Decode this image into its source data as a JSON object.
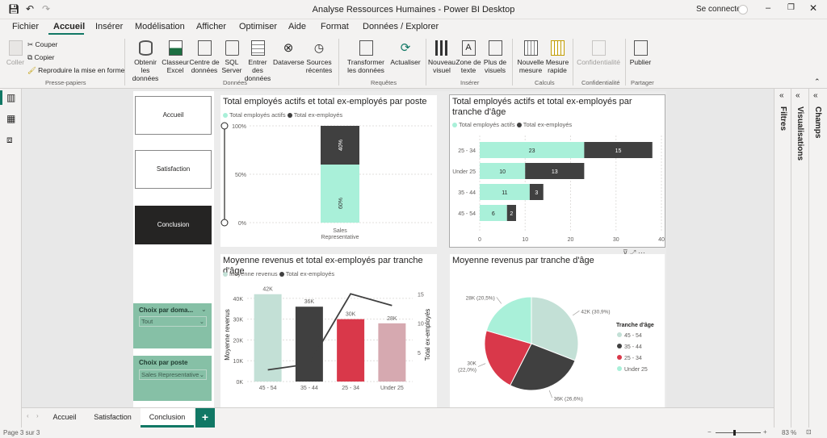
{
  "window": {
    "title": "Analyse Ressources Humaines - Power BI Desktop",
    "signin": "Se connecter"
  },
  "menu": {
    "tabs": [
      "Fichier",
      "Accueil",
      "Insérer",
      "Modélisation",
      "Afficher",
      "Optimiser",
      "Aide",
      "Format",
      "Données / Explorer"
    ],
    "selected": "Accueil"
  },
  "ribbon": {
    "clipboard": {
      "paste": "Coller",
      "cut": "Couper",
      "copy": "Copier",
      "format_painter": "Reproduire la mise en forme",
      "group": "Presse-papiers"
    },
    "data": {
      "get": "Obtenir les données",
      "excel": "Classeur Excel",
      "hub": "Centre de données",
      "sql": "SQL Server",
      "enter": "Entrer des données",
      "dataverse": "Dataverse",
      "recent": "Sources récentes",
      "group": "Données"
    },
    "queries": {
      "transform": "Transformer les données",
      "refresh": "Actualiser",
      "group": "Requêtes"
    },
    "insert": {
      "visual": "Nouveau visuel",
      "textbox": "Zone de texte",
      "more": "Plus de visuels",
      "group": "Insérer"
    },
    "calc": {
      "measure": "Nouvelle mesure",
      "quick": "Mesure rapide",
      "group": "Calculs"
    },
    "sensitivity": {
      "label": "Confidentialité",
      "group": "Confidentialité"
    },
    "share": {
      "publish": "Publier",
      "group": "Partager"
    }
  },
  "panes": {
    "filters": "Filtres",
    "visualizations": "Visualisations",
    "fields": "Champs"
  },
  "nav": {
    "accueil": "Accueil",
    "satisfaction": "Satisfaction",
    "conclusion": "Conclusion"
  },
  "slicers": [
    {
      "title": "Choix par doma...",
      "value": "Tout"
    },
    {
      "title": "Choix par poste",
      "value": "Sales Representative"
    }
  ],
  "colors": {
    "active": "#a9f0d9",
    "ex": "#404040",
    "bar1": "#c3e0d6",
    "bar2": "#404040",
    "bar3": "#d9384a",
    "bar4": "#d6a9b0"
  },
  "v1": {
    "title": "Total employés actifs et total ex-employés par poste",
    "legend": [
      "Total employés actifs",
      "Total ex-employés"
    ],
    "chart_data": {
      "type": "bar",
      "stacking": "100%",
      "categories": [
        "Sales Representative"
      ],
      "series": [
        {
          "name": "Total employés actifs",
          "values": [
            60
          ]
        },
        {
          "name": "Total ex-employés",
          "values": [
            40
          ]
        }
      ],
      "yticks": [
        "100%",
        "50%",
        "0%"
      ],
      "labels": [
        "60%",
        "40%"
      ]
    }
  },
  "v2": {
    "title": "Total employés actifs et total ex-employés par tranche d'âge",
    "legend": [
      "Total employés actifs",
      "Total ex-employés"
    ],
    "chart_data": {
      "type": "bar",
      "orientation": "horizontal",
      "stacked": true,
      "categories": [
        "25 - 34",
        "Under 25",
        "35 - 44",
        "45 - 54"
      ],
      "series": [
        {
          "name": "Total employés actifs",
          "values": [
            23,
            10,
            11,
            6
          ]
        },
        {
          "name": "Total ex-employés",
          "values": [
            15,
            13,
            3,
            2
          ]
        }
      ],
      "xticks": [
        0,
        10,
        20,
        30,
        40
      ],
      "xlim": [
        0,
        40
      ]
    }
  },
  "v3": {
    "title": "Moyenne revenus et total ex-employés par tranche d'âge",
    "legend": [
      "Moyenne revenus",
      "Total ex-employés"
    ],
    "chart_data": {
      "type": "bar",
      "categories": [
        "45 - 54",
        "35 - 44",
        "25 - 34",
        "Under 25"
      ],
      "series": [
        {
          "name": "Moyenne revenus",
          "values": [
            42,
            36,
            30,
            28
          ],
          "labels": [
            "42K",
            "36K",
            "30K",
            "28K"
          ]
        },
        {
          "name": "Total ex-employés",
          "type": "line",
          "values": [
            2,
            3,
            15,
            13
          ]
        }
      ],
      "ylabel": "Moyenne revenus",
      "y2label": "Total ex-employés",
      "yticks": [
        "0K",
        "10K",
        "20K",
        "30K",
        "40K"
      ],
      "y2ticks": [
        "5",
        "10",
        "15"
      ],
      "ylim": [
        0,
        45
      ],
      "y2lim": [
        0,
        16
      ]
    }
  },
  "v4": {
    "title": "Moyenne revenus par tranche d'âge",
    "legend_title": "Tranche d'âge",
    "legend": [
      "45 - 54",
      "35 - 44",
      "25 - 34",
      "Under 25"
    ],
    "chart_data": {
      "type": "pie",
      "labels": [
        "45 - 54",
        "35 - 44",
        "25 - 34",
        "Under 25"
      ],
      "values": [
        30.9,
        26.6,
        22.0,
        20.5
      ],
      "data_labels": [
        "42K (30,9%)",
        "36K (26,6%)",
        "30K (22,0%)",
        "28K (20,5%)"
      ]
    }
  },
  "pages": {
    "tabs": [
      "Accueil",
      "Satisfaction",
      "Conclusion"
    ],
    "active": "Conclusion",
    "add": "+"
  },
  "status": {
    "page": "Page 3 sur 3",
    "zoom": "83 %"
  }
}
